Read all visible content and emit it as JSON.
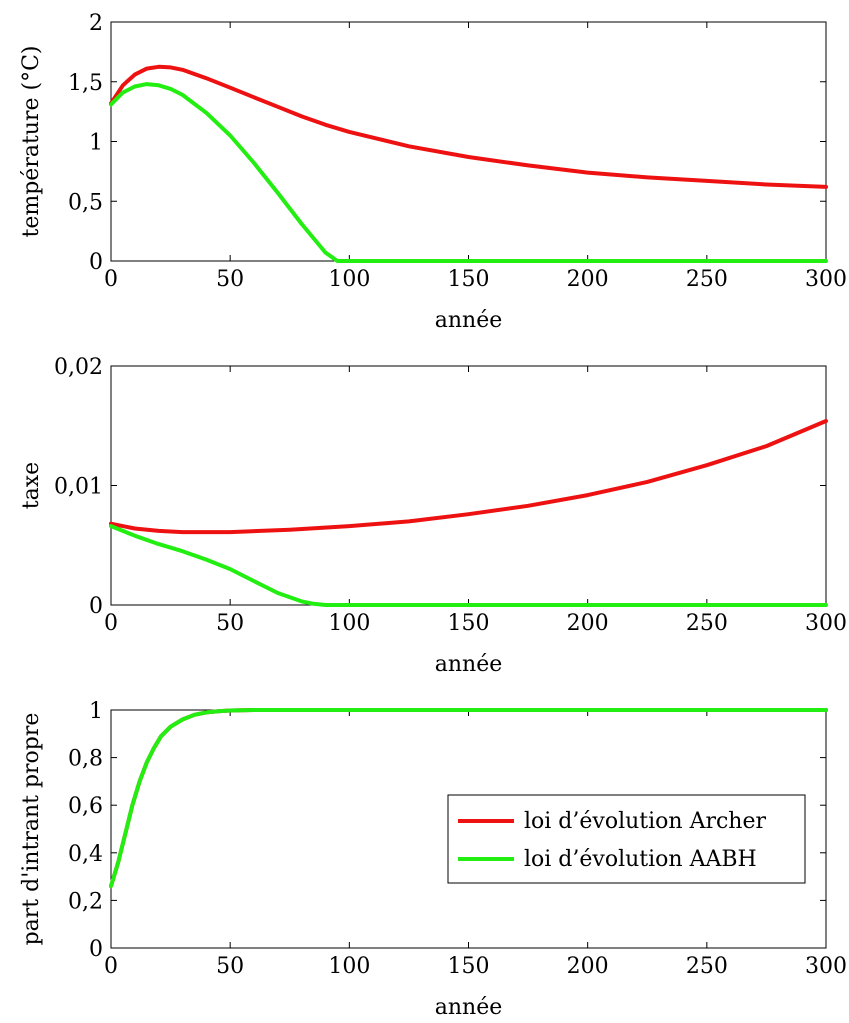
{
  "chart_data": [
    {
      "type": "line",
      "title": "",
      "xlabel": "année",
      "ylabel": "température (°C)",
      "xlim": [
        0,
        300
      ],
      "ylim": [
        0,
        2
      ],
      "xticks": [
        0,
        50,
        100,
        150,
        200,
        250,
        300
      ],
      "xtick_labels": [
        "0",
        "50",
        "100",
        "150",
        "200",
        "250",
        "300"
      ],
      "yticks": [
        0,
        0.5,
        1,
        1.5,
        2
      ],
      "ytick_labels": [
        "0",
        "0,5",
        "1",
        "1,5",
        "2"
      ],
      "grid": false,
      "series": [
        {
          "color": "#ee1111",
          "x": [
            0,
            5,
            10,
            15,
            20,
            25,
            30,
            40,
            50,
            60,
            70,
            80,
            90,
            100,
            125,
            150,
            175,
            200,
            225,
            250,
            275,
            300
          ],
          "y": [
            1.32,
            1.47,
            1.56,
            1.61,
            1.625,
            1.62,
            1.6,
            1.53,
            1.45,
            1.37,
            1.29,
            1.21,
            1.14,
            1.08,
            0.96,
            0.87,
            0.8,
            0.74,
            0.7,
            0.67,
            0.64,
            0.62
          ]
        },
        {
          "color": "#22ee11",
          "x": [
            0,
            5,
            10,
            15,
            20,
            25,
            30,
            40,
            50,
            60,
            70,
            80,
            90,
            95,
            100,
            150,
            200,
            250,
            300
          ],
          "y": [
            1.31,
            1.41,
            1.46,
            1.48,
            1.47,
            1.44,
            1.39,
            1.24,
            1.05,
            0.82,
            0.57,
            0.31,
            0.07,
            0.0,
            0.0,
            0.0,
            0.0,
            0.0,
            0.0
          ]
        }
      ]
    },
    {
      "type": "line",
      "title": "",
      "xlabel": "année",
      "ylabel": "taxe",
      "xlim": [
        0,
        300
      ],
      "ylim": [
        0,
        0.02
      ],
      "xticks": [
        0,
        50,
        100,
        150,
        200,
        250,
        300
      ],
      "xtick_labels": [
        "0",
        "50",
        "100",
        "150",
        "200",
        "250",
        "300"
      ],
      "yticks": [
        0,
        0.01,
        0.02
      ],
      "ytick_labels": [
        "0",
        "0,01",
        "0,02"
      ],
      "grid": false,
      "series": [
        {
          "color": "#ee1111",
          "x": [
            0,
            10,
            20,
            30,
            40,
            50,
            75,
            100,
            125,
            150,
            175,
            200,
            225,
            250,
            275,
            300
          ],
          "y": [
            0.0068,
            0.0064,
            0.0062,
            0.0061,
            0.0061,
            0.0061,
            0.0063,
            0.0066,
            0.007,
            0.0076,
            0.0083,
            0.0092,
            0.0103,
            0.0117,
            0.0133,
            0.0154
          ]
        },
        {
          "color": "#22ee11",
          "x": [
            0,
            10,
            20,
            30,
            40,
            50,
            60,
            70,
            80,
            85,
            90,
            100,
            150,
            200,
            250,
            300
          ],
          "y": [
            0.0066,
            0.0058,
            0.0051,
            0.0045,
            0.0038,
            0.003,
            0.002,
            0.001,
            0.0003,
            0.0001,
            0.0,
            0.0,
            0.0,
            0.0,
            0.0,
            0.0
          ]
        }
      ]
    },
    {
      "type": "line",
      "title": "",
      "xlabel": "année",
      "ylabel": "part d'intrant propre",
      "xlim": [
        0,
        300
      ],
      "ylim": [
        0,
        1
      ],
      "xticks": [
        0,
        50,
        100,
        150,
        200,
        250,
        300
      ],
      "xtick_labels": [
        "0",
        "50",
        "100",
        "150",
        "200",
        "250",
        "300"
      ],
      "yticks": [
        0,
        0.2,
        0.4,
        0.6,
        0.8,
        1
      ],
      "ytick_labels": [
        "0",
        "0,2",
        "0,4",
        "0,6",
        "0,8",
        "1"
      ],
      "grid": false,
      "legend": {
        "position": "bottom-right",
        "entries": [
          {
            "label": "loi d’évolution Archer",
            "color": "#ee1111"
          },
          {
            "label": "loi d’évolution AABH",
            "color": "#22ee11"
          }
        ]
      },
      "series": [
        {
          "name": "loi d’évolution Archer",
          "color": "#ee1111",
          "x": [
            0,
            3,
            6,
            9,
            12,
            15,
            18,
            21,
            25,
            30,
            35,
            40,
            45,
            50,
            60,
            70,
            100,
            150,
            200,
            250,
            300
          ],
          "y": [
            0.26,
            0.36,
            0.48,
            0.6,
            0.7,
            0.78,
            0.84,
            0.89,
            0.93,
            0.96,
            0.98,
            0.99,
            0.995,
            0.998,
            1.0,
            1.0,
            1.0,
            1.0,
            1.0,
            1.0,
            1.0
          ]
        },
        {
          "name": "loi d’évolution AABH",
          "color": "#22ee11",
          "x": [
            0,
            3,
            6,
            9,
            12,
            15,
            18,
            21,
            25,
            30,
            35,
            40,
            45,
            50,
            60,
            70,
            100,
            150,
            200,
            250,
            300
          ],
          "y": [
            0.26,
            0.36,
            0.48,
            0.6,
            0.7,
            0.78,
            0.84,
            0.89,
            0.93,
            0.96,
            0.98,
            0.99,
            0.995,
            0.998,
            1.0,
            1.0,
            1.0,
            1.0,
            1.0,
            1.0,
            1.0
          ]
        }
      ]
    }
  ]
}
